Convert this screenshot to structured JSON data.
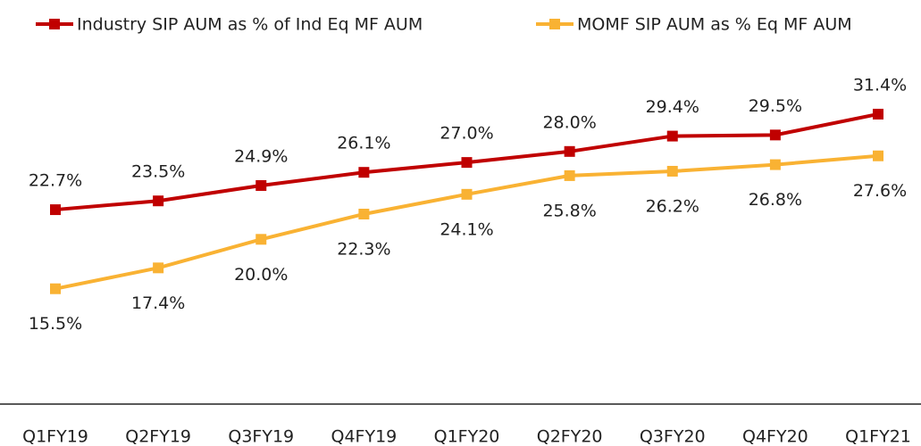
{
  "chart_data": {
    "type": "line",
    "categories": [
      "Q1FY19",
      "Q2FY19",
      "Q3FY19",
      "Q4FY19",
      "Q1FY20",
      "Q2FY20",
      "Q3FY20",
      "Q4FY20",
      "Q1FY21"
    ],
    "series": [
      {
        "name": "Industry SIP AUM as % of Ind Eq MF AUM",
        "color": "#c00000",
        "values": [
          22.7,
          23.5,
          24.9,
          26.1,
          27.0,
          28.0,
          29.4,
          29.5,
          31.4
        ],
        "value_labels": [
          "22.7%",
          "23.5%",
          "24.9%",
          "26.1%",
          "27.0%",
          "28.0%",
          "29.4%",
          "29.5%",
          "31.4%"
        ]
      },
      {
        "name": "MOMF SIP AUM as % Eq MF AUM",
        "color": "#f9b233",
        "values": [
          15.5,
          17.4,
          20.0,
          22.3,
          24.1,
          25.8,
          26.2,
          26.8,
          27.6
        ],
        "value_labels": [
          "15.5%",
          "17.4%",
          "20.0%",
          "22.3%",
          "24.1%",
          "25.8%",
          "26.2%",
          "26.8%",
          "27.6%"
        ]
      }
    ],
    "ylim": [
      5,
      37
    ]
  }
}
